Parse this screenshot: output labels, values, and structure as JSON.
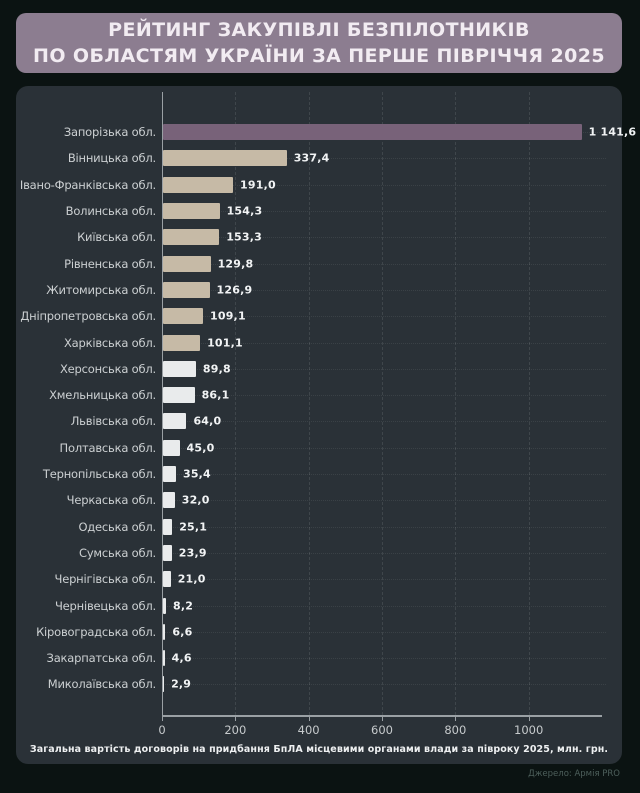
{
  "title": {
    "line1": "РЕЙТИНГ ЗАКУПІВЛІ БЕЗПІЛОТНИКІВ",
    "line2": "ПО ОБЛАСТЯМ УКРАЇНИ ЗА ПЕРШЕ ПІВРІЧЧЯ 2025"
  },
  "chart_data": {
    "type": "bar",
    "orientation": "horizontal",
    "categories": [
      "Запорізька обл.",
      "Вінницька обл.",
      "Івано-Франківська обл.",
      "Волинська обл.",
      "Київська обл.",
      "Рівненська обл.",
      "Житомирська обл.",
      "Дніпропетровська обл.",
      "Харківська обл.",
      "Херсонська обл.",
      "Хмельницька обл.",
      "Львівська обл.",
      "Полтавська обл.",
      "Тернопільська обл.",
      "Черкаська обл.",
      "Одеська обл.",
      "Сумська обл.",
      "Чернігівська обл.",
      "Чернівецька обл.",
      "Кіровоградська обл.",
      "Закарпатська обл.",
      "Миколаївська обл."
    ],
    "values": [
      1141.6,
      337.4,
      191.0,
      154.3,
      153.3,
      129.8,
      126.9,
      109.1,
      101.1,
      89.8,
      86.1,
      64.0,
      45.0,
      35.4,
      32.0,
      25.1,
      23.9,
      21.0,
      8.2,
      6.6,
      4.6,
      2.9
    ],
    "value_labels": [
      "1 141,6",
      "337,4",
      "191,0",
      "154,3",
      "153,3",
      "129,8",
      "126,9",
      "109,1",
      "101,1",
      "89,8",
      "86,1",
      "64,0",
      "45,0",
      "35,4",
      "32,0",
      "25,1",
      "23,9",
      "21,0",
      "8,2",
      "6,6",
      "4,6",
      "2,9"
    ],
    "bar_colors": [
      "#786279",
      "#c6baa6",
      "#c6baa6",
      "#c6baa6",
      "#c6baa6",
      "#c6baa6",
      "#c6baa6",
      "#c6baa6",
      "#c6baa6",
      "#e9ebec",
      "#e9ebec",
      "#e9ebec",
      "#e9ebec",
      "#e9ebec",
      "#e9ebec",
      "#e9ebec",
      "#e9ebec",
      "#e9ebec",
      "#e9ebec",
      "#e9ebec",
      "#e9ebec",
      "#e9ebec"
    ],
    "xticks": [
      0,
      200,
      400,
      600,
      800,
      1000
    ],
    "xtick_labels": [
      "0",
      "200",
      "400",
      "600",
      "800",
      "1000"
    ],
    "xlim": [
      0,
      1200
    ],
    "xlabel": "Загальна вартість договорів на придбання БпЛА місцевими органами влади за півроку 2025, млн. грн.",
    "ylabel": "",
    "grid": "vertical-dashed",
    "legend": "none"
  },
  "caption": "Загальна вартість договорів на придбання БпЛА місцевими органами влади за півроку 2025, млн. грн.",
  "source": "Джерело: Армія PRO",
  "colors": {
    "background": "#0b1312",
    "panel": "#2a3137",
    "title_bg": "#8c7d90",
    "highlight_bar": "#786279",
    "tan_bar": "#c6baa6",
    "light_bar": "#e9ebec",
    "axis": "#9aa0a4"
  }
}
